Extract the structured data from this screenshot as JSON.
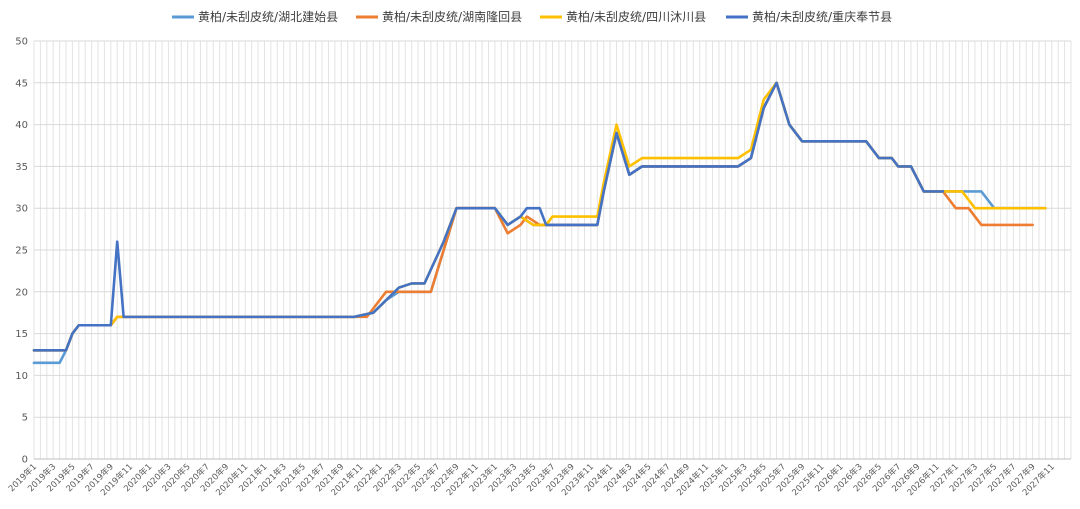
{
  "chart_data": {
    "type": "line",
    "title": "",
    "xlabel": "",
    "ylabel": "",
    "ylim": [
      0,
      50
    ],
    "yticks": [
      0,
      5,
      10,
      15,
      20,
      25,
      30,
      35,
      40,
      45,
      50
    ],
    "grid": true,
    "legend_position": "top",
    "x_tick_labels": [
      "2019年1",
      "2019年3",
      "2019年5",
      "2019年7",
      "2019年9",
      "2019年11",
      "2020年1",
      "2020年3",
      "2020年5",
      "2020年7",
      "2020年9",
      "2020年11",
      "2021年1",
      "2021年3",
      "2021年5",
      "2021年7",
      "2021年9",
      "2021年11",
      "2022年1",
      "2022年3",
      "2022年5",
      "2022年7",
      "2022年9",
      "2022年11",
      "2023年1",
      "2023年3",
      "2023年5",
      "2023年7",
      "2023年9",
      "2023年11",
      "2024年1",
      "2024年3",
      "2024年5",
      "2024年7",
      "2024年9",
      "2024年11",
      "2025年1",
      "2025年3",
      "2025年5",
      "2025年7",
      "2025年9",
      "2025年11",
      "2026年1",
      "2026年3",
      "2026年5",
      "2026年7",
      "2026年9",
      "2026年11",
      "2027年1",
      "2027年3",
      "2027年5",
      "2027年7",
      "2027年9",
      "2027年11"
    ],
    "series": [
      {
        "name": "黄柏/未刮皮统/湖北建始县",
        "color": "#5B9BD5",
        "points": [
          [
            0,
            11.5
          ],
          [
            4,
            11.5
          ],
          [
            5,
            13
          ],
          [
            6,
            15
          ],
          [
            7,
            16
          ],
          [
            12,
            16
          ],
          [
            13,
            17
          ],
          [
            14,
            17
          ],
          [
            50,
            17
          ],
          [
            53,
            17.5
          ],
          [
            55,
            19
          ],
          [
            57,
            20
          ],
          [
            62,
            20
          ],
          [
            64,
            25
          ],
          [
            66,
            30
          ],
          [
            71,
            30
          ],
          [
            72,
            30
          ],
          [
            74,
            28
          ],
          [
            76,
            29
          ],
          [
            78,
            28
          ],
          [
            88,
            28
          ],
          [
            89,
            32
          ],
          [
            91,
            39
          ],
          [
            93,
            34
          ],
          [
            95,
            35
          ],
          [
            110,
            35
          ],
          [
            112,
            36
          ],
          [
            114,
            42
          ],
          [
            116,
            45
          ],
          [
            118,
            40
          ],
          [
            120,
            38
          ],
          [
            130,
            38
          ],
          [
            132,
            36
          ],
          [
            134,
            36
          ],
          [
            135,
            35
          ],
          [
            137,
            35
          ],
          [
            139,
            32
          ],
          [
            148,
            32
          ],
          [
            150,
            30
          ],
          [
            158,
            30
          ]
        ]
      },
      {
        "name": "黄柏/未刮皮统/湖南隆回县",
        "color": "#ED7D31",
        "points": [
          [
            0,
            13
          ],
          [
            4,
            13
          ],
          [
            5,
            13
          ],
          [
            6,
            15
          ],
          [
            7,
            16
          ],
          [
            12,
            16
          ],
          [
            13,
            17
          ],
          [
            14,
            17
          ],
          [
            51,
            17
          ],
          [
            52,
            17
          ],
          [
            53,
            18
          ],
          [
            55,
            20
          ],
          [
            62,
            20
          ],
          [
            64,
            25
          ],
          [
            66,
            30
          ],
          [
            71,
            30
          ],
          [
            72,
            30
          ],
          [
            74,
            27
          ],
          [
            76,
            28
          ],
          [
            77,
            29
          ],
          [
            79,
            28
          ],
          [
            88,
            28
          ],
          [
            89,
            32
          ],
          [
            91,
            39
          ],
          [
            93,
            34
          ],
          [
            95,
            35
          ],
          [
            110,
            35
          ],
          [
            112,
            36
          ],
          [
            114,
            42
          ],
          [
            116,
            45
          ],
          [
            118,
            40
          ],
          [
            120,
            38
          ],
          [
            130,
            38
          ],
          [
            132,
            36
          ],
          [
            134,
            36
          ],
          [
            135,
            35
          ],
          [
            137,
            35
          ],
          [
            139,
            32
          ],
          [
            142,
            32
          ],
          [
            144,
            30
          ],
          [
            146,
            30
          ],
          [
            148,
            28
          ],
          [
            156,
            28
          ]
        ]
      },
      {
        "name": "黄柏/未刮皮统/四川沐川县",
        "color": "#FFC000",
        "points": [
          [
            0,
            13
          ],
          [
            4,
            13
          ],
          [
            5,
            13
          ],
          [
            6,
            15
          ],
          [
            7,
            16
          ],
          [
            12,
            16
          ],
          [
            13,
            17
          ],
          [
            14,
            17
          ],
          [
            50,
            17
          ],
          [
            53,
            17.5
          ],
          [
            55,
            19
          ],
          [
            57,
            20.5
          ],
          [
            59,
            21
          ],
          [
            61,
            21
          ],
          [
            64,
            26
          ],
          [
            66,
            30
          ],
          [
            71,
            30
          ],
          [
            72,
            30
          ],
          [
            74,
            28
          ],
          [
            76,
            29
          ],
          [
            78,
            28
          ],
          [
            80,
            28
          ],
          [
            81,
            29
          ],
          [
            88,
            29
          ],
          [
            89,
            33
          ],
          [
            91,
            40
          ],
          [
            93,
            35
          ],
          [
            95,
            36
          ],
          [
            110,
            36
          ],
          [
            112,
            37
          ],
          [
            114,
            43
          ],
          [
            116,
            45
          ],
          [
            118,
            40
          ],
          [
            120,
            38
          ],
          [
            130,
            38
          ],
          [
            132,
            36
          ],
          [
            134,
            36
          ],
          [
            135,
            35
          ],
          [
            137,
            35
          ],
          [
            139,
            32
          ],
          [
            142,
            32
          ],
          [
            145,
            32
          ],
          [
            147,
            30
          ],
          [
            158,
            30
          ]
        ]
      },
      {
        "name": "黄柏/未刮皮统/重庆奉节县",
        "color": "#4472C4",
        "points": [
          [
            0,
            13
          ],
          [
            4,
            13
          ],
          [
            5,
            13
          ],
          [
            6,
            15
          ],
          [
            7,
            16
          ],
          [
            12,
            16
          ],
          [
            13,
            26
          ],
          [
            14,
            17
          ],
          [
            50,
            17
          ],
          [
            53,
            17.5
          ],
          [
            55,
            19
          ],
          [
            57,
            20.5
          ],
          [
            59,
            21
          ],
          [
            61,
            21
          ],
          [
            64,
            26
          ],
          [
            66,
            30
          ],
          [
            71,
            30
          ],
          [
            72,
            30
          ],
          [
            74,
            28
          ],
          [
            76,
            29
          ],
          [
            77,
            30
          ],
          [
            79,
            30
          ],
          [
            80,
            28
          ],
          [
            88,
            28
          ],
          [
            89,
            32
          ],
          [
            91,
            39
          ],
          [
            93,
            34
          ],
          [
            95,
            35
          ],
          [
            110,
            35
          ],
          [
            112,
            36
          ],
          [
            114,
            42
          ],
          [
            116,
            45
          ],
          [
            118,
            40
          ],
          [
            120,
            38
          ],
          [
            130,
            38
          ],
          [
            132,
            36
          ],
          [
            134,
            36
          ],
          [
            135,
            35
          ],
          [
            137,
            35
          ],
          [
            139,
            32
          ],
          [
            142,
            32
          ]
        ]
      }
    ]
  }
}
